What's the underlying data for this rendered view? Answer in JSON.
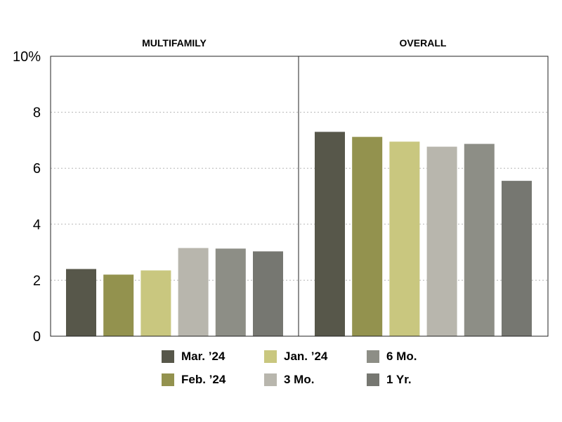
{
  "chart_data": {
    "type": "bar",
    "panels": [
      {
        "title": "MULTIFAMILY",
        "values": [
          2.4,
          2.2,
          2.35,
          3.15,
          3.13,
          3.03
        ]
      },
      {
        "title": "OVERALL",
        "values": [
          7.3,
          7.12,
          6.95,
          6.77,
          6.87,
          5.55
        ]
      }
    ],
    "series": [
      {
        "name": "Mar. ’24",
        "color": "#57574a"
      },
      {
        "name": "Feb. ’24",
        "color": "#93924e"
      },
      {
        "name": "Jan. ’24",
        "color": "#c9c77f"
      },
      {
        "name": "3 Mo.",
        "color": "#b8b6ad"
      },
      {
        "name": "6 Mo.",
        "color": "#8d8e86"
      },
      {
        "name": "1 Yr.",
        "color": "#767771"
      }
    ],
    "y_ticks": [
      "0",
      "2",
      "4",
      "6",
      "8",
      "10%"
    ],
    "ylim": [
      0,
      10
    ],
    "grid": "dotted horizontal"
  }
}
